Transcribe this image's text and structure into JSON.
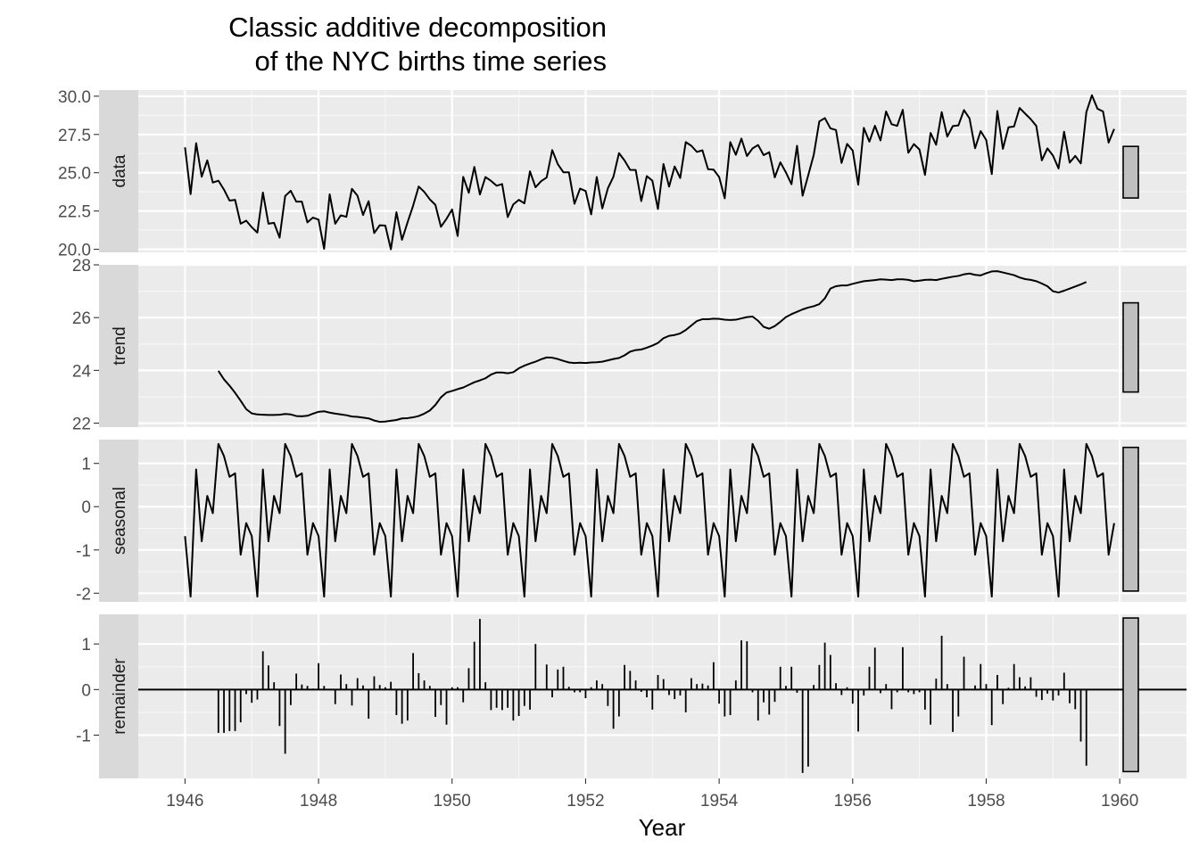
{
  "chart_data": {
    "type": "line",
    "title_lines": [
      "Classic additive decomposition",
      "of the NYC births time series"
    ],
    "xlabel": "Year",
    "x_ticks": [
      1946,
      1948,
      1950,
      1952,
      1954,
      1956,
      1958,
      1960
    ],
    "xlim": [
      1945.3,
      1961.0
    ],
    "start": 1946.0,
    "frequency": 12,
    "panels": [
      {
        "name": "data",
        "strip_label": "data",
        "ylim": [
          19.8,
          30.4
        ],
        "yticks": [
          20.0,
          22.5,
          25.0,
          27.5,
          30.0
        ],
        "ytick_labels": [
          "20.0",
          "22.5",
          "25.0",
          "27.5",
          "30.0"
        ],
        "range_bar": [
          23.35,
          26.72
        ],
        "style": "line",
        "values": [
          26.66,
          23.6,
          26.93,
          24.74,
          25.81,
          24.36,
          24.48,
          23.9,
          23.18,
          23.23,
          21.67,
          21.87,
          21.44,
          21.09,
          23.71,
          21.67,
          21.73,
          20.76,
          23.48,
          23.82,
          23.11,
          23.11,
          21.76,
          22.07,
          21.94,
          20.03,
          23.59,
          21.67,
          22.22,
          22.12,
          23.95,
          23.5,
          22.24,
          23.14,
          21.06,
          21.57,
          21.55,
          20.0,
          22.42,
          20.62,
          21.76,
          22.85,
          24.1,
          23.75,
          23.26,
          22.9,
          21.47,
          21.99,
          22.6,
          20.87,
          24.73,
          23.69,
          25.38,
          23.58,
          24.72,
          24.47,
          24.15,
          24.26,
          22.1,
          22.93,
          23.23,
          23.0,
          25.09,
          24.05,
          24.45,
          24.69,
          26.48,
          25.56,
          25.03,
          25.03,
          22.97,
          23.96,
          23.81,
          22.28,
          24.72,
          22.67,
          23.98,
          24.74,
          26.28,
          25.8,
          25.19,
          25.18,
          23.15,
          24.78,
          24.48,
          22.63,
          25.57,
          24.09,
          25.41,
          24.66,
          27.0,
          26.76,
          26.36,
          26.46,
          25.23,
          25.2,
          24.72,
          23.33,
          27.0,
          26.17,
          27.23,
          26.09,
          26.59,
          26.81,
          26.15,
          26.34,
          24.7,
          25.68,
          25.02,
          24.25,
          26.76,
          23.5,
          24.82,
          26.16,
          28.35,
          28.57,
          27.9,
          27.79,
          25.64,
          26.88,
          26.45,
          24.22,
          27.93,
          27.03,
          28.07,
          27.11,
          29.0,
          28.17,
          28.06,
          29.11,
          26.3,
          26.87,
          26.52,
          24.86,
          27.6,
          26.83,
          28.96,
          27.36,
          28.05,
          28.09,
          29.09,
          28.55,
          26.6,
          27.72,
          27.14,
          24.91,
          29.03,
          26.56,
          27.97,
          28.02,
          29.23,
          28.86,
          28.5,
          28.06,
          25.81,
          26.59,
          26.12,
          25.28,
          27.68,
          25.66,
          26.1,
          25.61,
          28.96,
          30.06,
          29.18,
          29.0,
          26.97,
          27.86
        ]
      },
      {
        "name": "trend",
        "strip_label": "trend",
        "ylim": [
          21.85,
          28.0
        ],
        "yticks": [
          22,
          24,
          26,
          28
        ],
        "ytick_labels": [
          "22",
          "24",
          "26",
          "28"
        ],
        "range_bar": [
          23.18,
          26.56
        ],
        "style": "line",
        "values": [
          null,
          null,
          null,
          null,
          null,
          null,
          23.98,
          23.66,
          23.42,
          23.15,
          22.85,
          22.53,
          22.37,
          22.33,
          22.32,
          22.31,
          22.31,
          22.32,
          22.35,
          22.33,
          22.27,
          22.26,
          22.28,
          22.36,
          22.43,
          22.45,
          22.4,
          22.36,
          22.33,
          22.3,
          22.25,
          22.24,
          22.21,
          22.18,
          22.1,
          22.05,
          22.06,
          22.09,
          22.12,
          22.18,
          22.19,
          22.22,
          22.27,
          22.36,
          22.48,
          22.69,
          22.98,
          23.16,
          23.22,
          23.29,
          23.35,
          23.45,
          23.55,
          23.62,
          23.7,
          23.84,
          23.92,
          23.92,
          23.89,
          23.93,
          24.08,
          24.18,
          24.26,
          24.33,
          24.42,
          24.49,
          24.48,
          24.43,
          24.36,
          24.3,
          24.28,
          24.29,
          24.28,
          24.3,
          24.31,
          24.33,
          24.38,
          24.43,
          24.47,
          24.57,
          24.71,
          24.77,
          24.79,
          24.86,
          24.94,
          25.04,
          25.22,
          25.31,
          25.34,
          25.4,
          25.53,
          25.7,
          25.87,
          25.94,
          25.94,
          25.96,
          25.95,
          25.92,
          25.91,
          25.92,
          25.97,
          26.02,
          26.04,
          25.88,
          25.65,
          25.58,
          25.68,
          25.84,
          26.02,
          26.13,
          26.22,
          26.31,
          26.38,
          26.43,
          26.51,
          26.73,
          27.1,
          27.19,
          27.22,
          27.22,
          27.28,
          27.33,
          27.38,
          27.4,
          27.42,
          27.45,
          27.44,
          27.42,
          27.45,
          27.45,
          27.43,
          27.38,
          27.4,
          27.43,
          27.44,
          27.42,
          27.47,
          27.51,
          27.55,
          27.58,
          27.64,
          27.67,
          27.62,
          27.6,
          27.68,
          27.75,
          27.76,
          27.71,
          27.66,
          27.61,
          27.52,
          27.46,
          27.43,
          27.38,
          27.29,
          27.19,
          27.0,
          26.95,
          27.02,
          27.1,
          27.18,
          27.26,
          27.35,
          null,
          null,
          null,
          null,
          null,
          null
        ]
      },
      {
        "name": "seasonal",
        "strip_label": "seasonal",
        "ylim": [
          -2.2,
          1.55
        ],
        "yticks": [
          -2,
          -1,
          0,
          1
        ],
        "ytick_labels": [
          "-2",
          "-1",
          "0",
          "1"
        ],
        "range_bar": [
          -1.95,
          1.37
        ],
        "style": "line",
        "pattern": [
          -0.68,
          -2.08,
          0.86,
          -0.8,
          0.25,
          -0.15,
          1.45,
          1.17,
          0.69,
          0.77,
          -1.11,
          -0.38
        ]
      },
      {
        "name": "remainder",
        "strip_label": "remainder",
        "ylim": [
          -1.95,
          1.65
        ],
        "yticks": [
          -1,
          0,
          1
        ],
        "ytick_labels": [
          "-1",
          "0",
          "1"
        ],
        "range_bar": [
          -1.8,
          1.57
        ],
        "style": "bars",
        "values": [
          null,
          null,
          null,
          null,
          null,
          null,
          -0.95,
          -0.95,
          -0.91,
          -0.91,
          -0.72,
          -0.1,
          -0.29,
          -0.22,
          0.84,
          0.53,
          0.16,
          -0.8,
          -1.41,
          -0.34,
          0.35,
          0.11,
          0.08,
          0.02,
          0.58,
          0.08,
          0.01,
          -0.32,
          0.33,
          0.12,
          -0.35,
          0.25,
          0.09,
          -0.64,
          0.29,
          0.1,
          0.05,
          0.17,
          -0.56,
          -0.75,
          -0.68,
          0.8,
          0.36,
          0.2,
          0.08,
          -0.6,
          -0.34,
          -0.77,
          0.05,
          0.05,
          -0.28,
          0.47,
          1.05,
          1.55,
          0.16,
          -0.45,
          -0.4,
          -0.45,
          -0.4,
          -0.68,
          -0.58,
          -0.36,
          -0.44,
          1.0,
          0.01,
          0.55,
          -0.17,
          0.44,
          0.5,
          0.06,
          -0.06,
          -0.06,
          -0.19,
          0.05,
          0.2,
          0.12,
          -0.36,
          -0.86,
          -0.59,
          0.54,
          0.41,
          0.2,
          -0.05,
          -0.17,
          -0.44,
          0.32,
          0.23,
          -0.12,
          -0.21,
          -0.13,
          -0.5,
          0.25,
          0.12,
          0.13,
          0.09,
          0.6,
          -0.31,
          -0.59,
          -0.56,
          0.2,
          1.08,
          1.06,
          -0.06,
          -0.68,
          -0.28,
          -0.55,
          -0.27,
          0.5,
          0.08,
          0.5,
          -0.07,
          -1.83,
          -1.69,
          0.1,
          0.54,
          1.03,
          0.76,
          0.14,
          -0.12,
          0.05,
          -0.31,
          -0.92,
          -0.13,
          0.5,
          0.92,
          -0.08,
          0.12,
          -0.43,
          -0.06,
          0.93,
          -0.06,
          -0.1,
          -0.06,
          -0.44,
          -0.77,
          0.24,
          1.18,
          0.12,
          -0.93,
          -0.59,
          0.72,
          0.0,
          0.09,
          0.56,
          0.12,
          -0.78,
          0.32,
          -0.32,
          0.04,
          0.56,
          0.27,
          0.07,
          0.27,
          -0.16,
          -0.23,
          -0.09,
          -0.24,
          -0.13,
          0.37,
          -0.3,
          -0.43,
          -1.14,
          -1.67,
          null,
          null,
          null,
          null,
          null,
          null
        ]
      }
    ]
  }
}
